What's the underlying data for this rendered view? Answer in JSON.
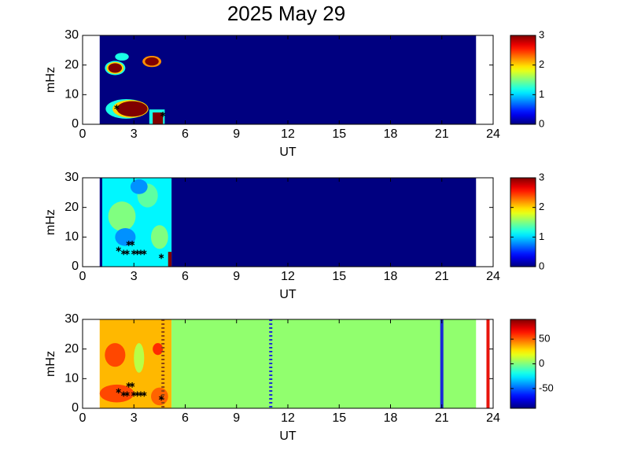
{
  "title": "2025 May 29",
  "chart_data": [
    {
      "type": "heatmap",
      "ylabel": "mHz",
      "xlabel": "UT",
      "colormap": "jet",
      "xlim": [
        0,
        24
      ],
      "xticks": [
        0,
        3,
        6,
        9,
        12,
        15,
        18,
        21,
        24
      ],
      "ylim": [
        0,
        30
      ],
      "yticks": [
        0,
        10,
        20,
        30
      ],
      "clim": [
        0,
        3
      ],
      "cticks": [
        0,
        1,
        2,
        3
      ],
      "cells": [
        {
          "x0": 1,
          "x1": 23,
          "y0": 0,
          "y1": 30,
          "value": 0
        },
        {
          "x0": 3.9,
          "x1": 4.8,
          "y0": 0,
          "y1": 5,
          "value": 1.2
        },
        {
          "x0": 4.1,
          "x1": 4.7,
          "y0": 0,
          "y1": 4,
          "value": 3
        }
      ],
      "blobs": [
        {
          "x": 2.55,
          "y": 5.2,
          "rx": 1.2,
          "ry": 3.3,
          "value": 1.2
        },
        {
          "x": 2.8,
          "y": 5.2,
          "rx": 1.05,
          "ry": 3.0,
          "value": 2
        },
        {
          "x": 2.9,
          "y": 5.2,
          "rx": 0.9,
          "ry": 2.6,
          "value": 3
        },
        {
          "x": 1.9,
          "y": 19,
          "rx": 0.6,
          "ry": 2.4,
          "value": 1.2
        },
        {
          "x": 1.9,
          "y": 19,
          "rx": 0.5,
          "ry": 2,
          "value": 2
        },
        {
          "x": 1.9,
          "y": 19,
          "rx": 0.4,
          "ry": 1.6,
          "value": 3
        },
        {
          "x": 2.3,
          "y": 22.8,
          "rx": 0.4,
          "ry": 1.3,
          "value": 1.2
        },
        {
          "x": 4.05,
          "y": 21.2,
          "rx": 0.55,
          "ry": 1.9,
          "value": 2.2
        },
        {
          "x": 4.05,
          "y": 21.2,
          "rx": 0.4,
          "ry": 1.4,
          "value": 3
        }
      ],
      "points": {
        "x": [
          2.0,
          4.7
        ],
        "y": [
          5.6,
          3.2
        ]
      }
    },
    {
      "type": "heatmap",
      "ylabel": "mHz",
      "xlabel": "UT",
      "colormap": "jet",
      "xlim": [
        0,
        24
      ],
      "xticks": [
        0,
        3,
        6,
        9,
        12,
        15,
        18,
        21,
        24
      ],
      "ylim": [
        0,
        30
      ],
      "yticks": [
        0,
        10,
        20,
        30
      ],
      "clim": [
        0,
        3
      ],
      "cticks": [
        0,
        1,
        2,
        3
      ],
      "cells": [
        {
          "x0": 1,
          "x1": 1.15,
          "y0": 0,
          "y1": 30,
          "value": 0
        },
        {
          "x0": 1.15,
          "x1": 5.2,
          "y0": 0,
          "y1": 30,
          "value": 1.1
        },
        {
          "x0": 5.2,
          "x1": 23,
          "y0": 0,
          "y1": 30,
          "value": 0
        },
        {
          "x0": 5.0,
          "x1": 5.2,
          "y0": 0,
          "y1": 5,
          "value": 3
        }
      ],
      "blobs": [
        {
          "x": 2.3,
          "y": 17,
          "rx": 0.8,
          "ry": 5,
          "value": 1.5
        },
        {
          "x": 3.8,
          "y": 24,
          "rx": 0.6,
          "ry": 4,
          "value": 1.4
        },
        {
          "x": 4.5,
          "y": 10,
          "rx": 0.5,
          "ry": 4,
          "value": 1.5
        },
        {
          "x": 3.3,
          "y": 27,
          "rx": 0.5,
          "ry": 2.5,
          "value": 0.8
        },
        {
          "x": 2.5,
          "y": 10,
          "rx": 0.6,
          "ry": 3,
          "value": 0.8
        }
      ],
      "points": {
        "x": [
          2.7,
          2.9,
          2.1,
          2.4,
          2.6,
          3.0,
          3.2,
          3.4,
          3.6,
          4.6
        ],
        "y": [
          7.8,
          7.8,
          5.8,
          4.7,
          4.7,
          4.7,
          4.7,
          4.7,
          4.7,
          3.3
        ]
      }
    },
    {
      "type": "heatmap",
      "ylabel": "mHz",
      "xlabel": "UT",
      "colormap": "jet",
      "xlim": [
        0,
        24
      ],
      "xticks": [
        0,
        3,
        6,
        9,
        12,
        15,
        18,
        21,
        24
      ],
      "ylim": [
        0,
        30
      ],
      "yticks": [
        0,
        10,
        20,
        30
      ],
      "clim": [
        -90,
        90
      ],
      "cticks": [
        -50,
        0,
        50
      ],
      "cells": [
        {
          "x0": 1,
          "x1": 5.2,
          "y0": 0,
          "y1": 30,
          "value": 35
        },
        {
          "x0": 5.2,
          "x1": 23,
          "y0": 0,
          "y1": 30,
          "value": 3
        }
      ],
      "blobs": [
        {
          "x": 1.9,
          "y": 18,
          "rx": 0.6,
          "ry": 4,
          "value": 55
        },
        {
          "x": 2.0,
          "y": 5,
          "rx": 1.0,
          "ry": 3,
          "value": 55
        },
        {
          "x": 4.5,
          "y": 4,
          "rx": 0.5,
          "ry": 3,
          "value": 50
        },
        {
          "x": 3.3,
          "y": 17,
          "rx": 0.3,
          "ry": 5,
          "value": 10
        },
        {
          "x": 4.4,
          "y": 20,
          "rx": 0.3,
          "ry": 2,
          "value": 60
        }
      ],
      "points": {
        "x": [
          2.7,
          2.9,
          2.1,
          2.4,
          2.6,
          3.0,
          3.2,
          3.4,
          3.6,
          4.6
        ],
        "y": [
          7.8,
          7.8,
          5.8,
          4.7,
          4.7,
          4.7,
          4.7,
          4.7,
          4.7,
          3.3
        ]
      },
      "vlines": [
        {
          "x": 4.7,
          "color": "#8b4513",
          "style": "dotted"
        },
        {
          "x": 11,
          "color": "#1a2bd6",
          "style": "dotted"
        },
        {
          "x": 21,
          "color": "#1a2bd6",
          "style": "solid"
        },
        {
          "x": 23.7,
          "color": "#e8140c",
          "style": "solid"
        }
      ]
    }
  ]
}
